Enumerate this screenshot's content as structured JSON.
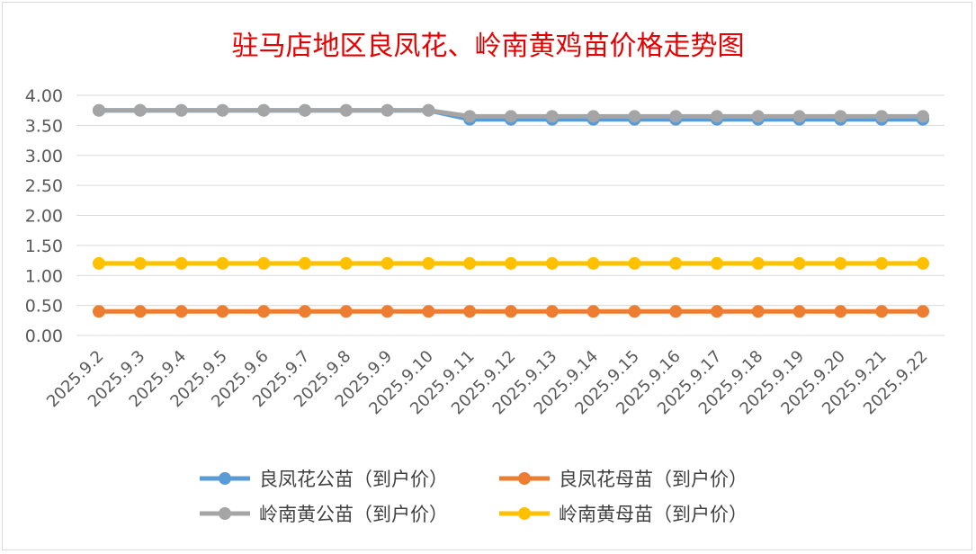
{
  "chart_data": {
    "type": "line",
    "title": "驻马店地区良凤花、岭南黄鸡苗价格走势图",
    "xlabel": "",
    "ylabel": "",
    "ylim": [
      0,
      4
    ],
    "yticks": [
      "0.00",
      "0.50",
      "1.00",
      "1.50",
      "2.00",
      "2.50",
      "3.00",
      "3.50",
      "4.00"
    ],
    "grid": true,
    "legend_position": "bottom",
    "categories": [
      "2025.9.2",
      "2025.9.3",
      "2025.9.4",
      "2025.9.5",
      "2025.9.6",
      "2025.9.7",
      "2025.9.8",
      "2025.9.9",
      "2025.9.10",
      "2025.9.11",
      "2025.9.12",
      "2025.9.13",
      "2025.9.14",
      "2025.9.15",
      "2025.9.16",
      "2025.9.17",
      "2025.9.18",
      "2025.9.19",
      "2025.9.20",
      "2025.9.21",
      "2025.9.22"
    ],
    "series": [
      {
        "name": "良凤花公苗（到户价）",
        "color": "#5b9bd5",
        "values": [
          3.75,
          3.75,
          3.75,
          3.75,
          3.75,
          3.75,
          3.75,
          3.75,
          3.75,
          3.6,
          3.6,
          3.6,
          3.6,
          3.6,
          3.6,
          3.6,
          3.6,
          3.6,
          3.6,
          3.6,
          3.6
        ]
      },
      {
        "name": "良凤花母苗（到户价）",
        "color": "#ed7d31",
        "values": [
          0.4,
          0.4,
          0.4,
          0.4,
          0.4,
          0.4,
          0.4,
          0.4,
          0.4,
          0.4,
          0.4,
          0.4,
          0.4,
          0.4,
          0.4,
          0.4,
          0.4,
          0.4,
          0.4,
          0.4,
          0.4
        ]
      },
      {
        "name": "岭南黄公苗（到户价）",
        "color": "#a5a5a5",
        "values": [
          3.75,
          3.75,
          3.75,
          3.75,
          3.75,
          3.75,
          3.75,
          3.75,
          3.75,
          3.65,
          3.65,
          3.65,
          3.65,
          3.65,
          3.65,
          3.65,
          3.65,
          3.65,
          3.65,
          3.65,
          3.65
        ]
      },
      {
        "name": "岭南黄母苗（到户价）",
        "color": "#ffc000",
        "values": [
          1.2,
          1.2,
          1.2,
          1.2,
          1.2,
          1.2,
          1.2,
          1.2,
          1.2,
          1.2,
          1.2,
          1.2,
          1.2,
          1.2,
          1.2,
          1.2,
          1.2,
          1.2,
          1.2,
          1.2,
          1.2
        ]
      }
    ]
  }
}
